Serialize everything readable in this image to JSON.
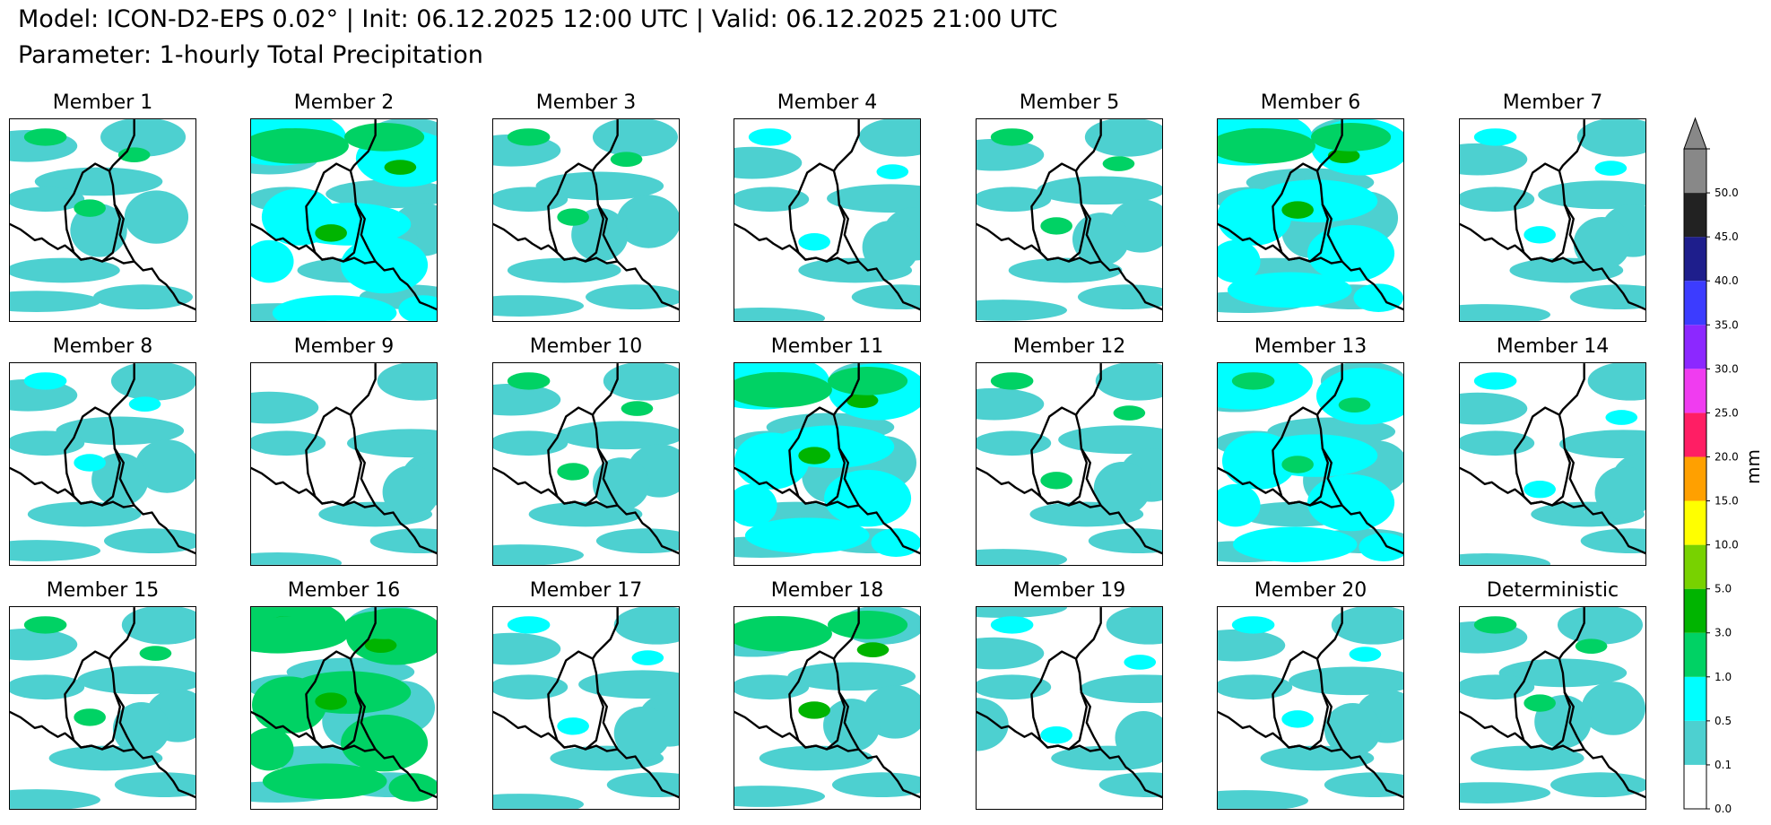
{
  "header": {
    "line1": "Model: ICON-D2-EPS 0.02° | Init: 06.12.2025 12:00 UTC | Valid: 06.12.2025 21:00 UTC",
    "line2": "Parameter: 1-hourly Total Precipitation"
  },
  "chart_data": {
    "type": "heatmap",
    "title": "Model: ICON-D2-EPS 0.02° | Init: 06.12.2025 12:00 UTC | Valid: 06.12.2025 21:00 UTC",
    "subtitle": "Parameter: 1-hourly Total Precipitation",
    "panels": [
      {
        "title": "Member 1",
        "dominant_class": "0.1",
        "max_class": "1.0"
      },
      {
        "title": "Member 2",
        "dominant_class": "0.5",
        "max_class": "3.0"
      },
      {
        "title": "Member 3",
        "dominant_class": "0.1",
        "max_class": "1.0"
      },
      {
        "title": "Member 4",
        "dominant_class": "0.1",
        "max_class": "0.5"
      },
      {
        "title": "Member 5",
        "dominant_class": "0.1",
        "max_class": "1.0"
      },
      {
        "title": "Member 6",
        "dominant_class": "0.5",
        "max_class": "3.0"
      },
      {
        "title": "Member 7",
        "dominant_class": "0.1",
        "max_class": "0.5"
      },
      {
        "title": "Member 8",
        "dominant_class": "0.1",
        "max_class": "0.5"
      },
      {
        "title": "Member 9",
        "dominant_class": "0.1",
        "max_class": "0.1"
      },
      {
        "title": "Member 10",
        "dominant_class": "0.1",
        "max_class": "1.0"
      },
      {
        "title": "Member 11",
        "dominant_class": "0.5",
        "max_class": "3.0"
      },
      {
        "title": "Member 12",
        "dominant_class": "0.1",
        "max_class": "1.0"
      },
      {
        "title": "Member 13",
        "dominant_class": "0.5",
        "max_class": "1.0"
      },
      {
        "title": "Member 14",
        "dominant_class": "0.1",
        "max_class": "0.5"
      },
      {
        "title": "Member 15",
        "dominant_class": "0.1",
        "max_class": "1.0"
      },
      {
        "title": "Member 16",
        "dominant_class": "1.0",
        "max_class": "3.0"
      },
      {
        "title": "Member 17",
        "dominant_class": "0.1",
        "max_class": "0.5"
      },
      {
        "title": "Member 18",
        "dominant_class": "0.1",
        "max_class": "3.0"
      },
      {
        "title": "Member 19",
        "dominant_class": "0.1",
        "max_class": "0.5"
      },
      {
        "title": "Member 20",
        "dominant_class": "0.1",
        "max_class": "0.5"
      },
      {
        "title": "Deterministic",
        "dominant_class": "0.1",
        "max_class": "1.0"
      }
    ],
    "colorbar": {
      "label": "mm",
      "extend": "max",
      "levels": [
        "0.0",
        "0.1",
        "0.5",
        "1.0",
        "3.0",
        "5.0",
        "10.0",
        "15.0",
        "20.0",
        "25.0",
        "30.0",
        "35.0",
        "40.0",
        "45.0",
        "50.0"
      ],
      "colors": [
        "#ffffff",
        "#4dd0d0",
        "#00ffff",
        "#00d264",
        "#00b400",
        "#78d200",
        "#ffff00",
        "#ffa000",
        "#ff1e64",
        "#f03cf0",
        "#8c28ff",
        "#3c3cff",
        "#1e1e8c",
        "#222222",
        "#888888"
      ]
    }
  }
}
